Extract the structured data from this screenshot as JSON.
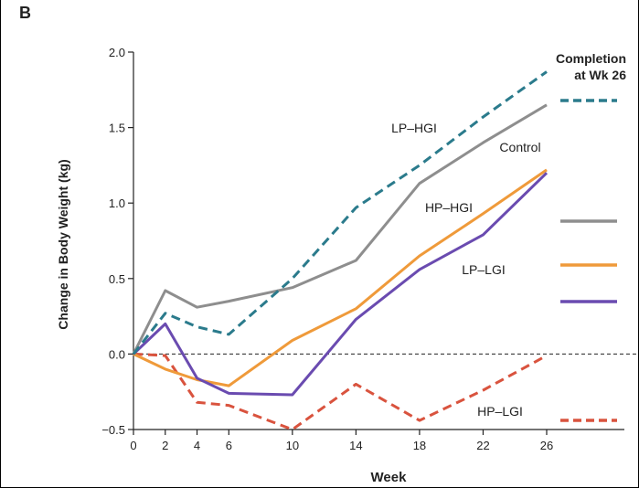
{
  "panel_label": "B",
  "chart_data": {
    "type": "line",
    "xlabel": "Week",
    "ylabel": "Change in Body Weight (kg)",
    "x": [
      0,
      2,
      4,
      6,
      10,
      14,
      18,
      22,
      26
    ],
    "xticks": [
      0,
      2,
      4,
      6,
      10,
      14,
      18,
      22,
      26
    ],
    "xlim": [
      0,
      26
    ],
    "ylim": [
      -0.5,
      2.0
    ],
    "yticks": [
      -0.5,
      0.0,
      0.5,
      1.0,
      1.5,
      2.0
    ],
    "ytick_labels": [
      "−0.5",
      "0.0",
      "0.5",
      "1.0",
      "1.5",
      "2.0"
    ],
    "reference_line": 0.0,
    "legend_title": "Completion at Wk 26",
    "series": [
      {
        "name": "LP–HGI",
        "color": "#2b7b8c",
        "dash": "dashed",
        "values": [
          0,
          0.27,
          0.18,
          0.13,
          0.5,
          0.97,
          1.25,
          1.57,
          1.87
        ]
      },
      {
        "name": "Control",
        "color": "#8e8e8e",
        "dash": "solid",
        "values": [
          0,
          0.42,
          0.31,
          0.35,
          0.44,
          0.62,
          1.13,
          1.4,
          1.65
        ]
      },
      {
        "name": "HP–HGI",
        "color": "#6a4bb0",
        "dash": "solid",
        "values": [
          0,
          0.2,
          -0.16,
          -0.26,
          -0.27,
          0.23,
          0.56,
          0.79,
          1.2
        ]
      },
      {
        "name": "LP–LGI",
        "color": "#ef9a3a",
        "dash": "solid",
        "values": [
          0,
          -0.1,
          -0.17,
          -0.21,
          0.09,
          0.3,
          0.65,
          0.93,
          1.22
        ]
      },
      {
        "name": "HP–LGI",
        "color": "#d9533e",
        "dash": "dashed",
        "values": [
          0,
          -0.01,
          -0.32,
          -0.34,
          -0.5,
          -0.2,
          -0.44,
          -0.24,
          -0.01
        ]
      }
    ]
  }
}
